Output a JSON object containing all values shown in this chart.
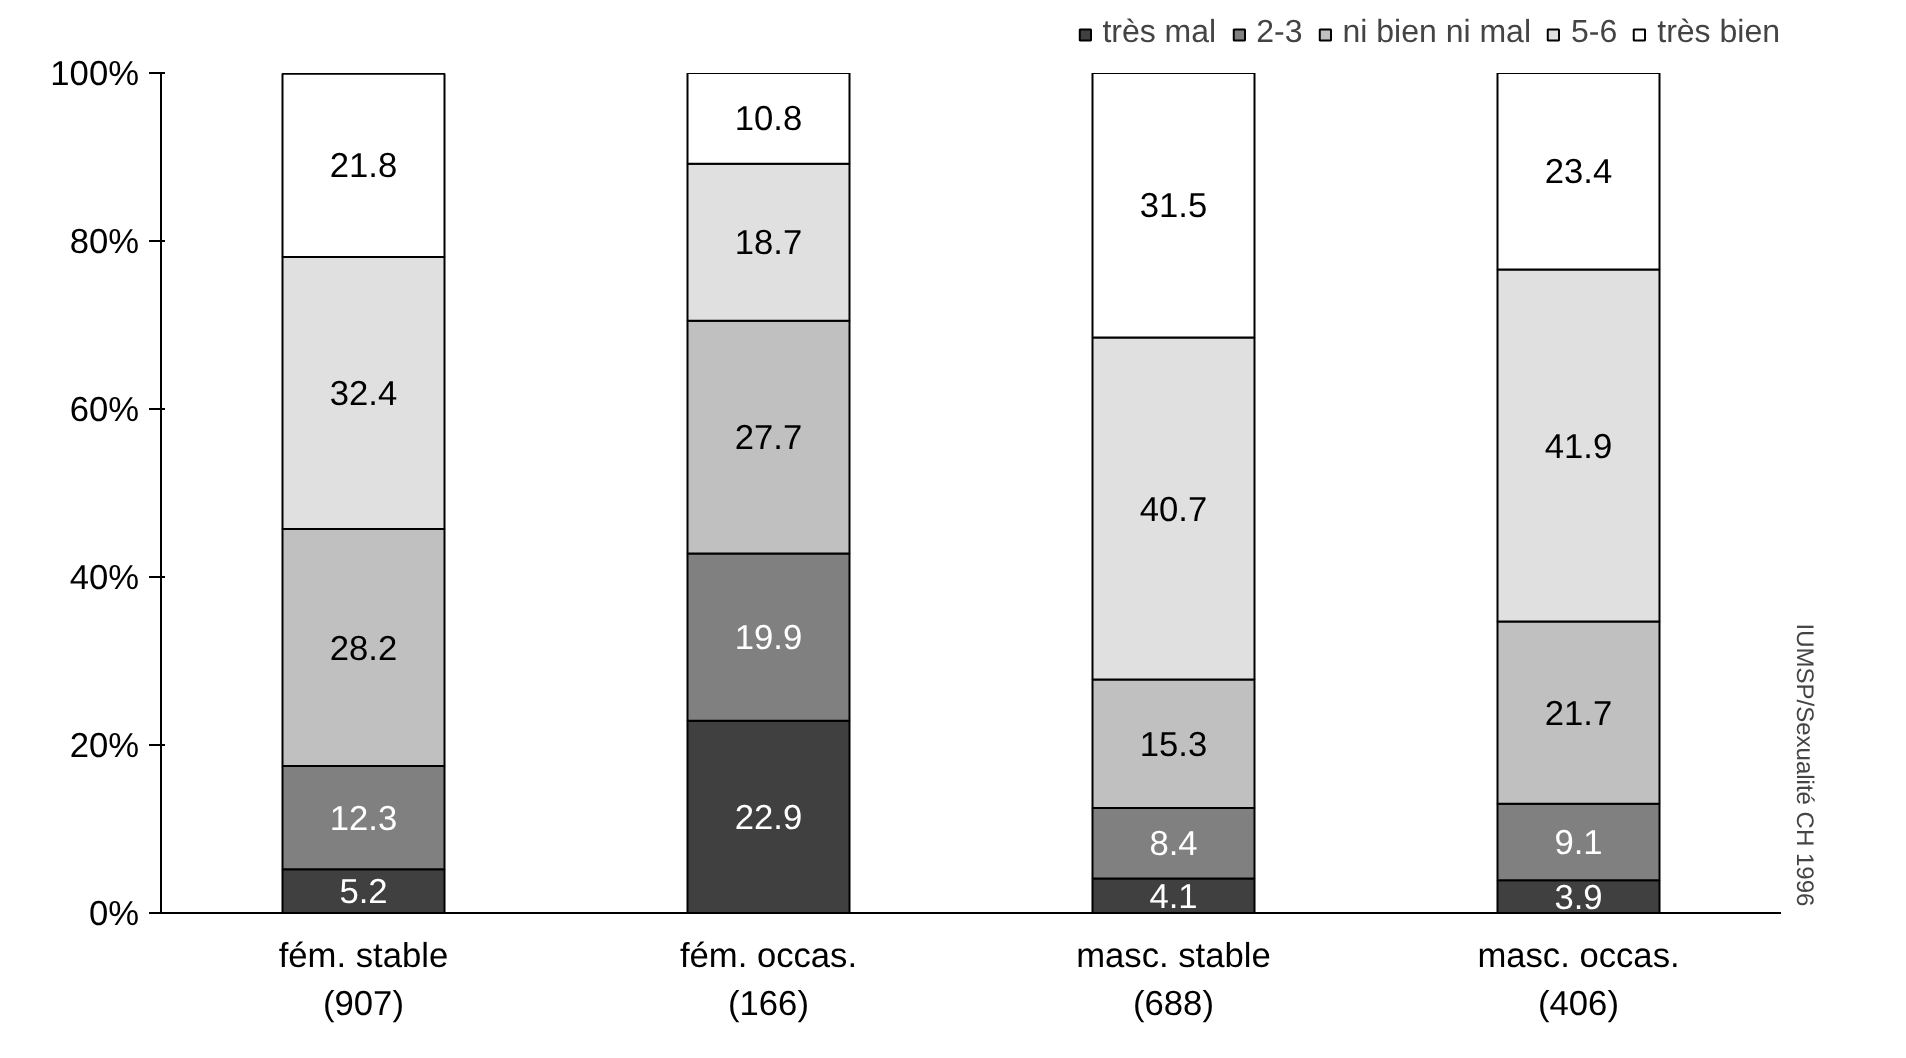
{
  "chart_data": {
    "type": "bar",
    "stacked": true,
    "categories": [
      "fém. stable\n(907)",
      "fém. occas.\n(166)",
      "masc. stable\n(688)",
      "masc. occas.\n(406)"
    ],
    "series": [
      {
        "name": "très mal",
        "color": "#404040",
        "values": [
          5.2,
          22.9,
          4.1,
          3.9
        ]
      },
      {
        "name": "2-3",
        "color": "#808080",
        "values": [
          12.3,
          19.9,
          8.4,
          9.1
        ]
      },
      {
        "name": "ni bien ni mal",
        "color": "#c0c0c0",
        "values": [
          28.2,
          27.7,
          15.3,
          21.7
        ]
      },
      {
        "name": "5-6",
        "color": "#e0e0e0",
        "values": [
          32.4,
          18.7,
          40.7,
          41.9
        ]
      },
      {
        "name": "très bien",
        "color": "#ffffff",
        "values": [
          21.8,
          10.8,
          31.5,
          23.4
        ]
      }
    ],
    "ylim": [
      0,
      100
    ],
    "yticks": [
      {
        "value": 0,
        "label": "0%"
      },
      {
        "value": 20,
        "label": "20%"
      },
      {
        "value": 40,
        "label": "40%"
      },
      {
        "value": 60,
        "label": "60%"
      },
      {
        "value": 80,
        "label": "80%"
      },
      {
        "value": 100,
        "label": "100%"
      }
    ],
    "data_labels": true,
    "grid": false,
    "legend": "top right",
    "annotations": [
      "IUMSP/Sexualité CH  1996"
    ]
  }
}
